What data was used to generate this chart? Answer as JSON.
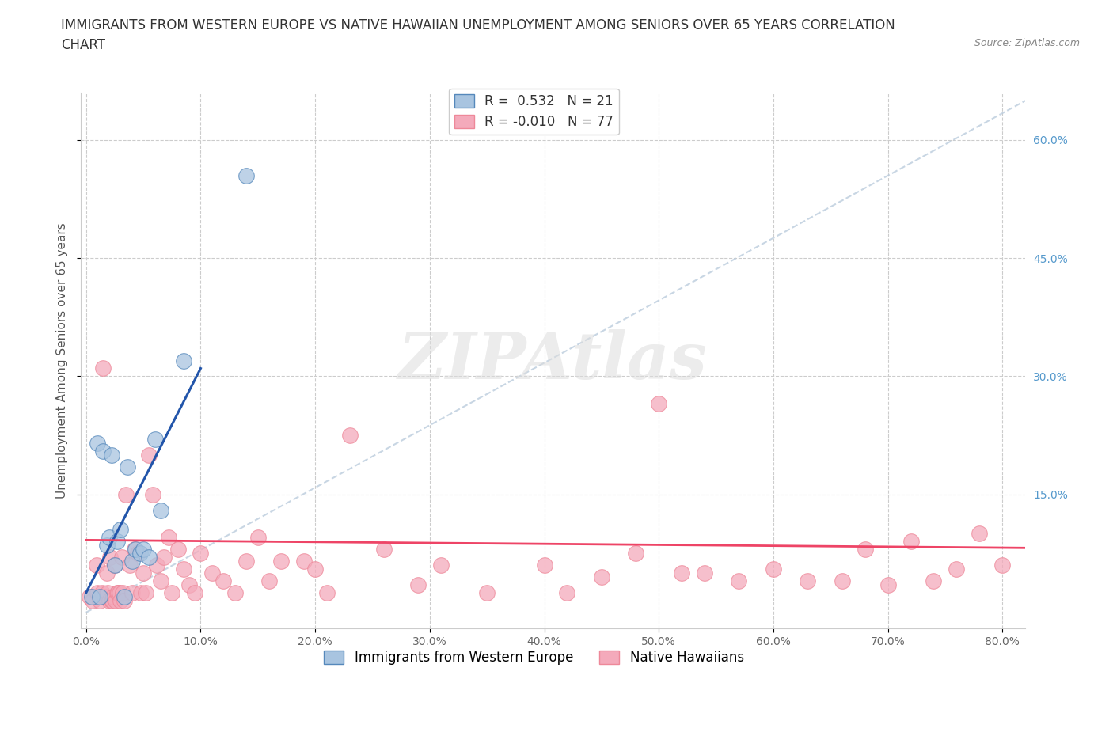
{
  "title_line1": "IMMIGRANTS FROM WESTERN EUROPE VS NATIVE HAWAIIAN UNEMPLOYMENT AMONG SENIORS OVER 65 YEARS CORRELATION",
  "title_line2": "CHART",
  "source": "Source: ZipAtlas.com",
  "ylabel": "Unemployment Among Seniors over 65 years",
  "xlim": [
    -0.005,
    0.82
  ],
  "ylim": [
    -0.02,
    0.66
  ],
  "xticks": [
    0.0,
    0.1,
    0.2,
    0.3,
    0.4,
    0.5,
    0.6,
    0.7,
    0.8
  ],
  "xticklabels": [
    "0.0%",
    "10.0%",
    "20.0%",
    "30.0%",
    "40.0%",
    "50.0%",
    "60.0%",
    "70.0%",
    "80.0%"
  ],
  "yticks": [
    0.15,
    0.3,
    0.45,
    0.6
  ],
  "yticklabels": [
    "15.0%",
    "30.0%",
    "45.0%",
    "60.0%"
  ],
  "watermark": "ZIPAtlas",
  "blue_color": "#A8C4E0",
  "pink_color": "#F4AABB",
  "blue_edge": "#5588BB",
  "pink_edge": "#EE8899",
  "blue_line_color": "#2255AA",
  "pink_line_color": "#EE4466",
  "trend_line_color": "#BBCCDD",
  "legend_R1": "0.532",
  "legend_N1": "21",
  "legend_R2": "-0.010",
  "legend_N2": "77",
  "blue_scatter_x": [
    0.005,
    0.01,
    0.012,
    0.015,
    0.018,
    0.02,
    0.022,
    0.025,
    0.027,
    0.03,
    0.033,
    0.036,
    0.04,
    0.043,
    0.047,
    0.05,
    0.055,
    0.06,
    0.065,
    0.085,
    0.14
  ],
  "blue_scatter_y": [
    0.02,
    0.215,
    0.02,
    0.205,
    0.085,
    0.095,
    0.2,
    0.06,
    0.09,
    0.105,
    0.02,
    0.185,
    0.065,
    0.08,
    0.075,
    0.08,
    0.07,
    0.22,
    0.13,
    0.32,
    0.555
  ],
  "pink_scatter_x": [
    0.003,
    0.006,
    0.009,
    0.01,
    0.012,
    0.014,
    0.015,
    0.016,
    0.018,
    0.019,
    0.02,
    0.021,
    0.022,
    0.023,
    0.024,
    0.025,
    0.026,
    0.027,
    0.028,
    0.029,
    0.03,
    0.031,
    0.032,
    0.033,
    0.035,
    0.038,
    0.04,
    0.042,
    0.045,
    0.048,
    0.05,
    0.052,
    0.055,
    0.058,
    0.062,
    0.065,
    0.068,
    0.072,
    0.075,
    0.08,
    0.085,
    0.09,
    0.095,
    0.1,
    0.11,
    0.12,
    0.13,
    0.14,
    0.15,
    0.16,
    0.17,
    0.19,
    0.2,
    0.21,
    0.23,
    0.26,
    0.29,
    0.31,
    0.35,
    0.4,
    0.42,
    0.45,
    0.48,
    0.5,
    0.52,
    0.54,
    0.57,
    0.6,
    0.63,
    0.66,
    0.68,
    0.7,
    0.72,
    0.74,
    0.76,
    0.78,
    0.8
  ],
  "pink_scatter_y": [
    0.02,
    0.015,
    0.06,
    0.025,
    0.015,
    0.025,
    0.31,
    0.02,
    0.05,
    0.025,
    0.015,
    0.07,
    0.015,
    0.015,
    0.02,
    0.06,
    0.015,
    0.025,
    0.025,
    0.025,
    0.015,
    0.07,
    0.025,
    0.015,
    0.15,
    0.06,
    0.025,
    0.08,
    0.075,
    0.025,
    0.05,
    0.025,
    0.2,
    0.15,
    0.06,
    0.04,
    0.07,
    0.095,
    0.025,
    0.08,
    0.055,
    0.035,
    0.025,
    0.075,
    0.05,
    0.04,
    0.025,
    0.065,
    0.095,
    0.04,
    0.065,
    0.065,
    0.055,
    0.025,
    0.225,
    0.08,
    0.035,
    0.06,
    0.025,
    0.06,
    0.025,
    0.045,
    0.075,
    0.265,
    0.05,
    0.05,
    0.04,
    0.055,
    0.04,
    0.04,
    0.08,
    0.035,
    0.09,
    0.04,
    0.055,
    0.1,
    0.06
  ],
  "grid_color": "#CCCCCC",
  "bg_color": "#FFFFFF",
  "title_fontsize": 12,
  "axis_label_fontsize": 11,
  "tick_fontsize": 10,
  "legend_fontsize": 12
}
